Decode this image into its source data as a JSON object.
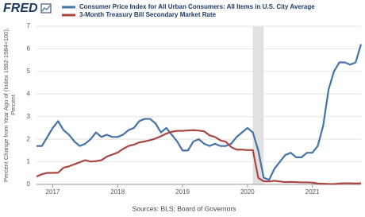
{
  "logo": "FRED",
  "chart_data": {
    "type": "line",
    "legend": "top",
    "ylabel": [
      "Percent Change from Year Ago of (Index 1982-1984=100),",
      "Percent"
    ],
    "source": "Sources: BLS; Board of Governors",
    "xlim": [
      2016.75,
      2021.75
    ],
    "xticks": [
      2017,
      2018,
      2019,
      2020,
      2021
    ],
    "ylim": [
      0,
      7
    ],
    "yticks": [
      0,
      1,
      2,
      3,
      4,
      5,
      6,
      7
    ],
    "grid": true,
    "shade": {
      "color": "#e1e1e1",
      "x": [
        2020.083,
        2020.25
      ]
    },
    "x": [
      2016.75,
      2016.833,
      2016.917,
      2017,
      2017.083,
      2017.167,
      2017.25,
      2017.333,
      2017.417,
      2017.5,
      2017.583,
      2017.667,
      2017.75,
      2017.833,
      2017.917,
      2018,
      2018.083,
      2018.167,
      2018.25,
      2018.333,
      2018.417,
      2018.5,
      2018.583,
      2018.667,
      2018.75,
      2018.833,
      2018.917,
      2019,
      2019.083,
      2019.167,
      2019.25,
      2019.333,
      2019.417,
      2019.5,
      2019.583,
      2019.667,
      2019.75,
      2019.833,
      2019.917,
      2020,
      2020.083,
      2020.167,
      2020.25,
      2020.333,
      2020.417,
      2020.5,
      2020.583,
      2020.667,
      2020.75,
      2020.833,
      2020.917,
      2021,
      2021.083,
      2021.167,
      2021.25,
      2021.333,
      2021.417,
      2021.5,
      2021.583,
      2021.667,
      2021.75
    ],
    "series": [
      {
        "name": "Consumer Price Index for All Urban Consumers: All Items in U.S. City Average",
        "color": "#4572a7",
        "values": [
          1.7,
          1.7,
          2.1,
          2.5,
          2.8,
          2.4,
          2.2,
          1.9,
          1.7,
          1.8,
          2.0,
          2.3,
          2.1,
          2.2,
          2.1,
          2.1,
          2.2,
          2.4,
          2.5,
          2.8,
          2.9,
          2.9,
          2.7,
          2.3,
          2.5,
          2.2,
          1.9,
          1.5,
          1.5,
          1.9,
          2.0,
          1.8,
          1.7,
          1.8,
          1.7,
          1.7,
          1.8,
          2.1,
          2.3,
          2.5,
          2.3,
          1.5,
          0.3,
          0.2,
          0.7,
          1.0,
          1.3,
          1.4,
          1.2,
          1.2,
          1.4,
          1.4,
          1.7,
          2.6,
          4.2,
          5.0,
          5.4,
          5.4,
          5.3,
          5.4,
          6.2
        ]
      },
      {
        "name": "3-Month Treasury Bill Secondary Market Rate",
        "color": "#aa4643",
        "values": [
          0.35,
          0.45,
          0.51,
          0.51,
          0.52,
          0.74,
          0.8,
          0.89,
          0.98,
          1.07,
          1.01,
          1.03,
          1.07,
          1.23,
          1.32,
          1.41,
          1.57,
          1.7,
          1.76,
          1.86,
          1.9,
          1.96,
          2.03,
          2.13,
          2.25,
          2.33,
          2.37,
          2.37,
          2.39,
          2.4,
          2.38,
          2.35,
          2.17,
          2.1,
          1.95,
          1.89,
          1.65,
          1.54,
          1.54,
          1.52,
          1.52,
          0.29,
          0.14,
          0.13,
          0.16,
          0.13,
          0.1,
          0.11,
          0.1,
          0.09,
          0.09,
          0.08,
          0.04,
          0.03,
          0.02,
          0.02,
          0.04,
          0.05,
          0.05,
          0.04,
          0.05
        ]
      }
    ]
  }
}
